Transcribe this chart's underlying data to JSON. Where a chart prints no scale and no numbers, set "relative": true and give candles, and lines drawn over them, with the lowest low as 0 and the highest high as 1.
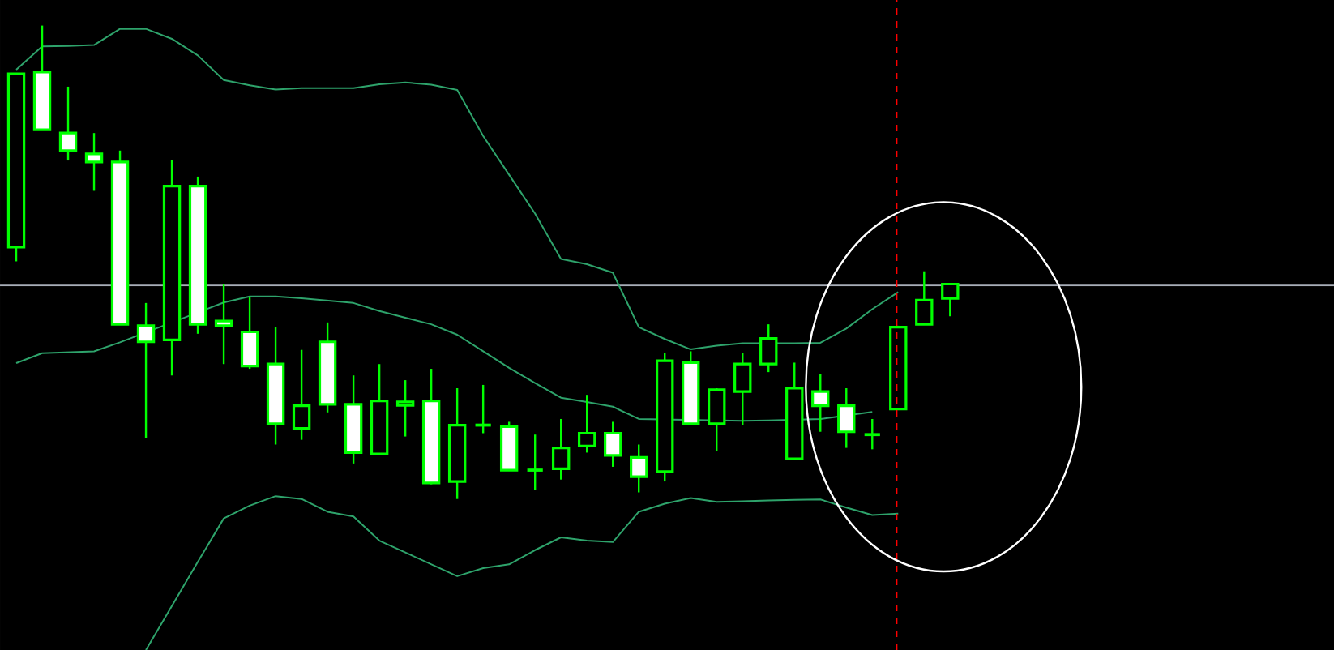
{
  "chart_data": {
    "type": "candlestick",
    "relative": true,
    "color": "#00ff00",
    "categories": [
      null,
      null,
      null,
      null,
      null,
      null,
      null,
      null,
      null,
      null,
      null,
      null,
      null,
      null,
      null,
      null,
      null,
      null,
      null,
      null,
      null,
      null,
      null,
      null,
      null,
      null,
      null,
      null,
      null,
      null,
      null,
      null,
      null,
      null,
      null,
      null,
      null
    ],
    "ohlc": [
      [
        0.532,
        0.898,
        0.502,
        0.898
      ],
      [
        0.902,
        1,
        0.78,
        0.78
      ],
      [
        0.773,
        0.871,
        0.715,
        0.736
      ],
      [
        0.729,
        0.773,
        0.651,
        0.712
      ],
      [
        0.712,
        0.736,
        0.369,
        0.369
      ],
      [
        0.366,
        0.414,
        0.129,
        0.332
      ],
      [
        0.336,
        0.715,
        0.261,
        0.661
      ],
      [
        0.661,
        0.681,
        0.349,
        0.369
      ],
      [
        0.376,
        0.454,
        0.285,
        0.366
      ],
      [
        0.353,
        0.427,
        0.275,
        0.281
      ],
      [
        0.285,
        0.363,
        0.115,
        0.159
      ],
      [
        0.149,
        0.315,
        0.125,
        0.197
      ],
      [
        0.332,
        0.373,
        0.183,
        0.2
      ],
      [
        0.2,
        0.261,
        0.075,
        0.098
      ],
      [
        0.095,
        0.285,
        0.095,
        0.207
      ],
      [
        0.198,
        0.251,
        0.132,
        0.205
      ],
      [
        0.207,
        0.275,
        0.031,
        0.034
      ],
      [
        0.037,
        0.234,
        0,
        0.156
      ],
      [
        0.156,
        0.241,
        0.139,
        0.156
      ],
      [
        0.153,
        0.163,
        0.061,
        0.061
      ],
      [
        0.061,
        0.136,
        0.02,
        0.061
      ],
      [
        0.064,
        0.169,
        0.041,
        0.108
      ],
      [
        0.112,
        0.22,
        0.098,
        0.139
      ],
      [
        0.139,
        0.163,
        0.068,
        0.092
      ],
      [
        0.088,
        0.115,
        0.014,
        0.047
      ],
      [
        0.058,
        0.308,
        0.037,
        0.292
      ],
      [
        0.288,
        0.312,
        0.159,
        0.159
      ],
      [
        0.159,
        0.234,
        0.102,
        0.231
      ],
      [
        0.227,
        0.308,
        0.156,
        0.285
      ],
      [
        0.285,
        0.369,
        0.268,
        0.339
      ],
      [
        0.085,
        0.288,
        0.085,
        0.234
      ],
      [
        0.227,
        0.264,
        0.142,
        0.197
      ],
      [
        0.197,
        0.234,
        0.108,
        0.142
      ],
      [
        0.136,
        0.169,
        0.105,
        0.136
      ],
      [
        0.19,
        0.366,
        0.19,
        0.363
      ],
      [
        0.369,
        0.481,
        0.369,
        0.42
      ],
      [
        0.424,
        0.454,
        0.386,
        0.454
      ]
    ],
    "series": [
      {
        "type": "line",
        "color": "#2ea36b",
        "values": [
          0.907,
          0.956,
          0.957,
          0.959,
          0.993,
          0.993,
          0.972,
          0.937,
          0.885,
          0.874,
          0.865,
          0.868,
          0.868,
          0.868,
          0.876,
          0.88,
          0.875,
          0.864,
          0.767,
          0.685,
          0.603,
          0.507,
          0.496,
          0.478,
          0.363,
          0.338,
          0.316,
          0.324,
          0.329,
          null,
          0.329,
          0.33,
          0.36,
          0.401,
          0.437,
          null,
          null
        ]
      },
      {
        "type": "line",
        "color": "#2ea36b",
        "values": [
          0.287,
          0.308,
          0.31,
          0.312,
          0.331,
          null,
          null,
          null,
          0.415,
          0.428,
          0.428,
          0.424,
          0.419,
          0.414,
          0.397,
          0.383,
          0.369,
          0.347,
          0.312,
          0.277,
          0.245,
          0.214,
          0.205,
          0.195,
          0.169,
          null,
          null,
          null,
          0.165,
          0.166,
          null,
          0.169,
          null,
          0.184,
          null,
          null,
          null
        ]
      },
      {
        "type": "line",
        "color": "#2ea36b",
        "values": [
          null,
          null,
          null,
          null,
          null,
          -0.319,
          -0.226,
          -0.133,
          -0.041,
          -0.014,
          0.006,
          0,
          -0.027,
          -0.037,
          -0.088,
          -0.113,
          -0.138,
          -0.163,
          -0.146,
          -0.138,
          -0.108,
          -0.081,
          -0.088,
          -0.091,
          -0.027,
          -0.01,
          0.002,
          -0.006,
          -0.005,
          -0.003,
          -0.002,
          -0.001,
          -0.018,
          -0.034,
          -0.031,
          null,
          null
        ]
      }
    ],
    "ref_lines": [
      {
        "axis": "y",
        "value": 0.451,
        "color": "#a8aeb8"
      }
    ]
  }
}
